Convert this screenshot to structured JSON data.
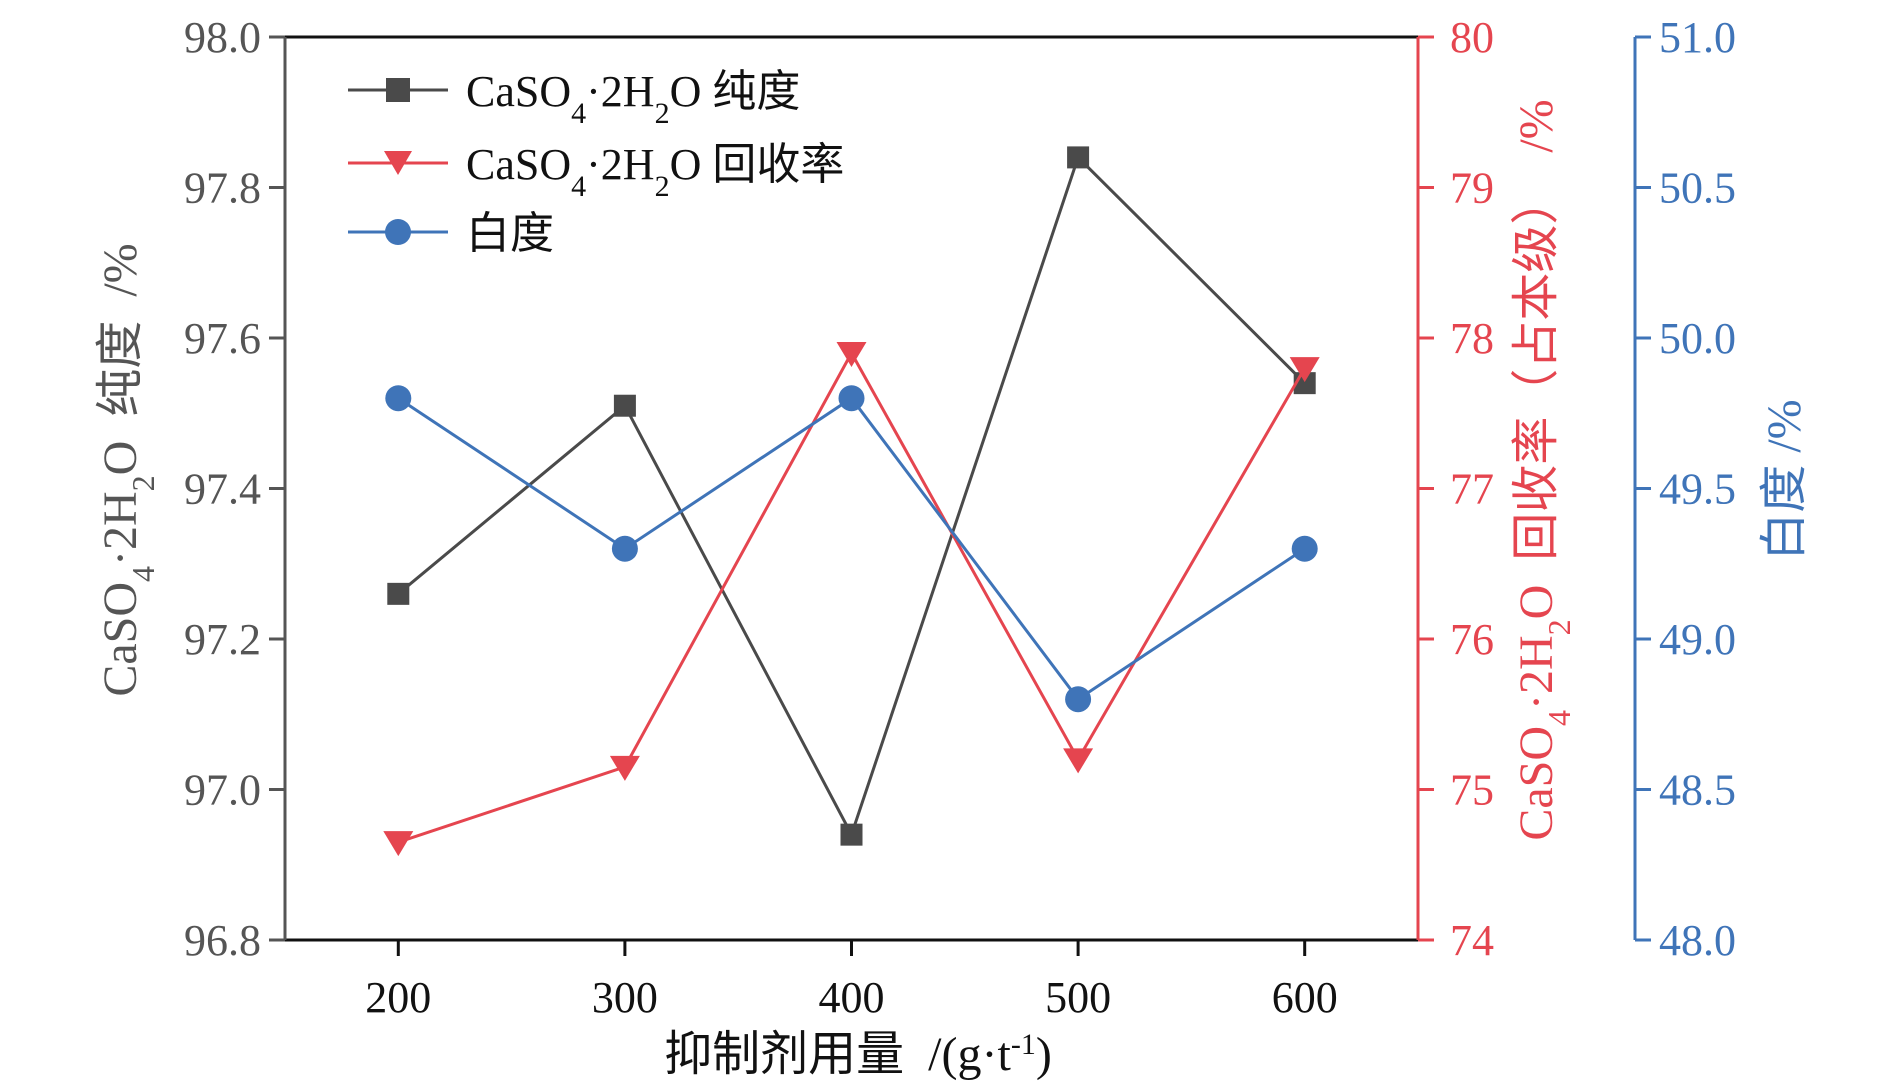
{
  "chart_data": {
    "type": "line",
    "x": [
      200,
      300,
      400,
      500,
      600
    ],
    "x_tick_labels": [
      "200",
      "300",
      "400",
      "500",
      "600"
    ],
    "xlim": [
      150,
      650
    ],
    "xlabel": {
      "main": "抑制剂用量  /(g·t",
      "sup": "-1",
      "tail": ")"
    },
    "axes": {
      "left": {
        "ylim": [
          96.8,
          98.0
        ],
        "ticks": [
          "96.8",
          "97.0",
          "97.2",
          "97.4",
          "97.6",
          "97.8",
          "98.0"
        ],
        "label": {
          "a": "CaSO",
          "b": "4",
          "c": "·2H",
          "d": "2",
          "e": "O  纯度  /%"
        },
        "color": "#555555"
      },
      "right1": {
        "ylim": [
          74,
          80
        ],
        "ticks": [
          "74",
          "75",
          "76",
          "77",
          "78",
          "79",
          "80"
        ],
        "label": {
          "a": "CaSO",
          "b": "4",
          "c": "·2H",
          "d": "2",
          "e": "O  回收率（占本级）  /%"
        },
        "color": "#e5454f"
      },
      "right2": {
        "ylim": [
          48.0,
          51.0
        ],
        "ticks": [
          "48.0",
          "48.5",
          "49.0",
          "49.5",
          "50.0",
          "50.5",
          "51.0"
        ],
        "label": "白度  /%",
        "color": "#3f74b8"
      }
    },
    "series": [
      {
        "name": {
          "a": "CaSO",
          "b": "4",
          "c": "·2H",
          "d": "2",
          "e": "O 纯度"
        },
        "axis": "left",
        "marker": "square",
        "color": "#4a4a4a",
        "values": [
          97.26,
          97.51,
          96.94,
          97.84,
          97.54
        ]
      },
      {
        "name": {
          "a": "CaSO",
          "b": "4",
          "c": "·2H",
          "d": "2",
          "e": "O 回收率"
        },
        "axis": "right1",
        "marker": "triangle-down",
        "color": "#e5454f",
        "values": [
          74.65,
          75.15,
          77.9,
          75.2,
          77.8
        ]
      },
      {
        "name": "白度",
        "axis": "right2",
        "marker": "circle",
        "color": "#3f74b8",
        "values": [
          49.8,
          49.3,
          49.8,
          48.8,
          49.3
        ]
      }
    ],
    "legend": "top-left",
    "grid": false
  }
}
